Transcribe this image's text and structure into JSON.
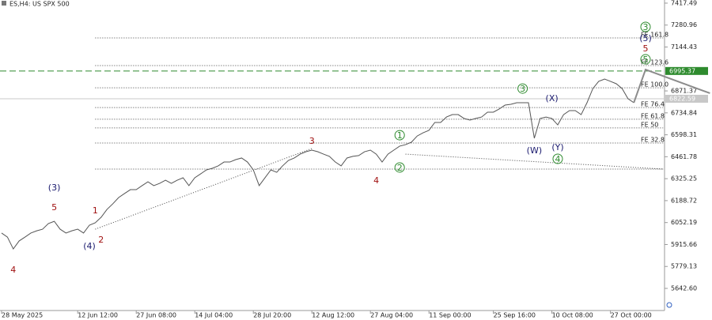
{
  "chart_data": {
    "type": "line",
    "title": "ES,H4:  US SPX 500",
    "categories": [
      "28 May 2025",
      null,
      null,
      null,
      null,
      null,
      null,
      null,
      null,
      null,
      null,
      null,
      null,
      "12 Jun 12:00",
      null,
      null,
      null,
      null,
      null,
      null,
      null,
      null,
      null,
      "27 Jun 08:00",
      null,
      null,
      null,
      null,
      null,
      null,
      null,
      null,
      null,
      "14 Jul 04:00",
      null,
      null,
      null,
      null,
      null,
      null,
      null,
      null,
      null,
      "28 Jul 20:00",
      null,
      null,
      null,
      null,
      null,
      null,
      null,
      null,
      null,
      "12 Aug 12:00",
      null,
      null,
      null,
      null,
      null,
      null,
      null,
      null,
      null,
      "27 Aug 04:00",
      null,
      null,
      null,
      null,
      null,
      null,
      null,
      null,
      null,
      "11 Sep 00:00",
      null,
      null,
      null,
      null,
      null,
      null,
      null,
      null,
      null,
      null,
      "25 Sep 16:00",
      null,
      null,
      null,
      null,
      null,
      null,
      null,
      null,
      null,
      "10 Oct 08:00",
      null,
      null,
      null,
      null,
      null,
      null,
      null,
      null,
      null,
      "27 Oct 00:00",
      null,
      null,
      null,
      null
    ],
    "values": [
      5987,
      5962,
      5888,
      5938,
      5962,
      5987,
      6001,
      6011,
      6046,
      6060,
      6011,
      5987,
      6001,
      6011,
      5987,
      6036,
      6051,
      6085,
      6134,
      6169,
      6208,
      6233,
      6257,
      6257,
      6282,
      6306,
      6282,
      6296,
      6316,
      6296,
      6316,
      6331,
      6282,
      6331,
      6355,
      6380,
      6390,
      6405,
      6429,
      6429,
      6444,
      6454,
      6429,
      6380,
      6282,
      6331,
      6380,
      6365,
      6405,
      6439,
      6454,
      6478,
      6493,
      6503,
      6493,
      6478,
      6464,
      6429,
      6405,
      6454,
      6464,
      6469,
      6493,
      6503,
      6478,
      6429,
      6478,
      6503,
      6528,
      6537,
      6552,
      6591,
      6611,
      6626,
      6675,
      6675,
      6709,
      6724,
      6724,
      6700,
      6690,
      6700,
      6709,
      6739,
      6739,
      6759,
      6783,
      6788,
      6798,
      6798,
      6798,
      6577,
      6700,
      6709,
      6700,
      6660,
      6724,
      6749,
      6749,
      6724,
      6798,
      6886,
      6931,
      6945,
      6931,
      6916,
      6886,
      6823,
      6798
    ],
    "color": "#555555",
    "projection": {
      "x": [
        108,
        110,
        121
      ],
      "values": [
        6798,
        7004,
        6857
      ],
      "color": "#8c8c8c"
    },
    "xlim": [
      0,
      121
    ],
    "ylim": [
      5505,
      7437
    ],
    "yticks": [
      7417.49,
      7280.96,
      7144.43,
      6871.37,
      6734.84,
      6598.31,
      6461.78,
      6325.25,
      6188.72,
      6052.19,
      5915.66,
      5779.13,
      {
        "value": 5642.6,
        "label": "5642.60"
      }
    ],
    "price_levels": [
      {
        "value": 6995.37,
        "color": "#2e8b2e",
        "dashed": true
      },
      {
        "value": 6822.59,
        "color": "#c8c8c8",
        "dashed": false
      }
    ],
    "fib_levels": [
      {
        "label": "FE 161.8",
        "value": 7201
      },
      {
        "label": "FE 123.6",
        "value": 7029
      },
      {
        "label": "FE 100.0",
        "value": 6891
      },
      {
        "label": "FE 76.4",
        "value": 6768
      },
      {
        "label": "FE 61.8",
        "value": 6695
      },
      {
        "label": "FE 50",
        "value": 6641
      },
      {
        "label": "FE 32.8",
        "value": 6547
      }
    ],
    "fib_range": [
      16,
      113
    ],
    "trendlines": [
      {
        "x": [
          16,
          53
        ],
        "values": [
          6011,
          6513
        ]
      },
      {
        "x": [
          69,
          113
        ],
        "values": [
          6478,
          6385
        ]
      },
      {
        "x": [
          16,
          113
        ],
        "values": [
          6385,
          6385
        ]
      }
    ],
    "annotations": [
      {
        "text": "4",
        "x": 2,
        "y": 5761,
        "color": "#a01010",
        "circled": false
      },
      {
        "text": "5",
        "x": 9,
        "y": 6149,
        "color": "#a01010",
        "circled": false
      },
      {
        "text": "(3)",
        "x": 9,
        "y": 6272,
        "color": "#1a1a6e",
        "circled": false
      },
      {
        "text": "1",
        "x": 16,
        "y": 6129,
        "color": "#a01010",
        "circled": false
      },
      {
        "text": "2",
        "x": 17,
        "y": 5947,
        "color": "#a01010",
        "circled": false
      },
      {
        "text": "(4)",
        "x": 15,
        "y": 5908,
        "color": "#1a1a6e",
        "circled": false
      },
      {
        "text": "3",
        "x": 53,
        "y": 6562,
        "color": "#a01010",
        "circled": false
      },
      {
        "text": "4",
        "x": 64,
        "y": 6316,
        "color": "#a01010",
        "circled": false
      },
      {
        "text": "1",
        "x": 68,
        "y": 6596,
        "color": "#2e8b2e",
        "circled": true
      },
      {
        "text": "2",
        "x": 68,
        "y": 6395,
        "color": "#2e8b2e",
        "circled": true
      },
      {
        "text": "3",
        "x": 89,
        "y": 6886,
        "color": "#2e8b2e",
        "circled": true
      },
      {
        "text": "(X)",
        "x": 94,
        "y": 6827,
        "color": "#1a1a6e",
        "circled": false
      },
      {
        "text": "(W)",
        "x": 91,
        "y": 6503,
        "color": "#1a1a6e",
        "circled": false
      },
      {
        "text": "(Y)",
        "x": 95,
        "y": 6523,
        "color": "#1a1a6e",
        "circled": false
      },
      {
        "text": "4",
        "x": 95,
        "y": 6449,
        "color": "#2e8b2e",
        "circled": true
      },
      {
        "text": "5",
        "x": 110,
        "y": 7068,
        "color": "#2e8b2e",
        "circled": true
      },
      {
        "text": "3",
        "x": 110,
        "y": 7270,
        "color": "#2e8b2e",
        "circled": true
      },
      {
        "text": "(5)",
        "x": 110,
        "y": 7201,
        "color": "#1a1a6e",
        "circled": false
      },
      {
        "text": "5",
        "x": 110,
        "y": 7137,
        "color": "#a01010",
        "circled": false
      }
    ]
  }
}
